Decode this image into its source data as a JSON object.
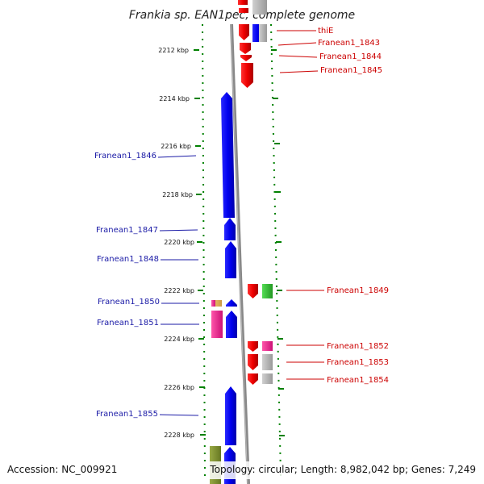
{
  "title": "Frankia sp. EAN1pec, complete genome",
  "footer": {
    "accession": "Accession: NC_009921",
    "summary": "Topology: circular; Length: 8,982,042 bp; Genes: 7,249"
  },
  "ticks": [
    "2212 kbp",
    "2214 kbp",
    "2216 kbp",
    "2218 kbp",
    "2220 kbp",
    "2222 kbp",
    "2224 kbp",
    "2226 kbp",
    "2228 kbp"
  ],
  "labels_left": [
    "Franean1_1846",
    "Franean1_1847",
    "Franean1_1848",
    "Franean1_1850",
    "Franean1_1851",
    "Franean1_1855"
  ],
  "labels_right": [
    "thiE",
    "Franean1_1843",
    "Franean1_1844",
    "Franean1_1845",
    "Franean1_1849",
    "Franean1_1852",
    "Franean1_1853",
    "Franean1_1854"
  ],
  "colors": {
    "forward_cds": "#0000ee",
    "reverse_cds": "#ee0000",
    "label_left": "#1a1aa6",
    "label_right": "#cc0000",
    "ruler": "#008000",
    "backbone": "#808080",
    "cog_green": "#33bb33",
    "cog_pink": "#ee2288",
    "cog_gray": "#aaaaaa",
    "cog_olive": "#778833",
    "cog_tan": "#ddbb66"
  }
}
